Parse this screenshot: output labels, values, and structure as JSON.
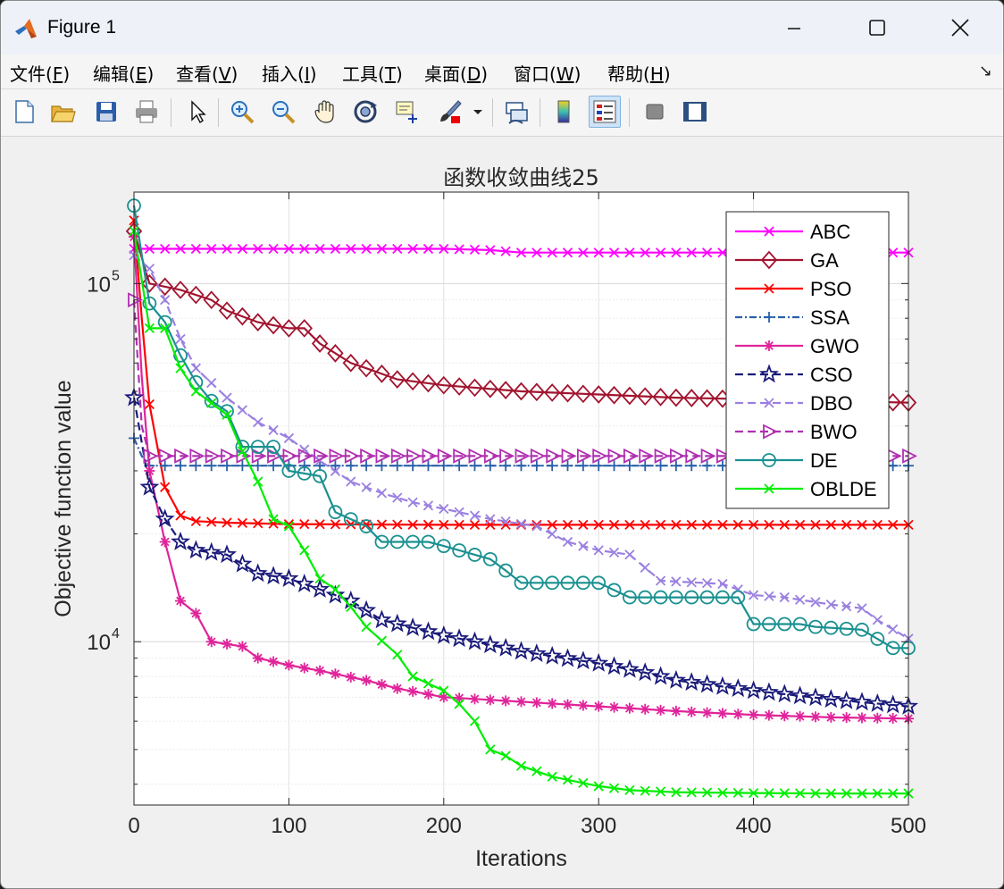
{
  "window": {
    "title": "Figure 1"
  },
  "menu": {
    "items": [
      {
        "label": "文件(",
        "key": "F",
        "end": ")"
      },
      {
        "label": "编辑(",
        "key": "E",
        "end": ")"
      },
      {
        "label": "查看(",
        "key": "V",
        "end": ")"
      },
      {
        "label": "插入(",
        "key": "I",
        "end": ")"
      },
      {
        "label": "工具(",
        "key": "T",
        "end": ")"
      },
      {
        "label": "桌面(",
        "key": "D",
        "end": ")"
      },
      {
        "label": "窗口(",
        "key": "W",
        "end": ")"
      },
      {
        "label": "帮助(",
        "key": "H",
        "end": ")"
      }
    ]
  },
  "toolbar": {
    "icons": [
      "new-figure-icon",
      "open-file-icon",
      "save-icon",
      "print-icon",
      "pointer-icon",
      "zoom-in-icon",
      "zoom-out-icon",
      "pan-hand-icon",
      "rotate-3d-icon",
      "data-cursor-icon",
      "brush-icon",
      "brush-dropdown-icon",
      "link-plot-icon",
      "colorbar-icon",
      "legend-icon",
      "hide-plot-tools-icon",
      "show-plot-tools-icon"
    ]
  },
  "chart_data": {
    "type": "line",
    "title": "函数收敛曲线25",
    "xlabel": "Iterations",
    "ylabel": "Objective function value",
    "xlim": [
      0,
      500
    ],
    "ylim": [
      3500,
      180000
    ],
    "yscale": "log",
    "xticks": [
      "0",
      "100",
      "200",
      "300",
      "400",
      "500"
    ],
    "yticks": [
      {
        "base": "10",
        "exp": "4",
        "value": 10000
      },
      {
        "base": "10",
        "exp": "5",
        "value": 100000
      }
    ],
    "grid": true,
    "legend_position": "top-right",
    "series": [
      {
        "name": "ABC",
        "color": "#ff00ff",
        "dash": "",
        "marker": "x",
        "points": [
          [
            0,
            125000
          ],
          [
            10,
            125000
          ],
          [
            50,
            125000
          ],
          [
            100,
            125000
          ],
          [
            200,
            125000
          ],
          [
            230,
            124000
          ],
          [
            250,
            122000
          ],
          [
            300,
            122000
          ],
          [
            400,
            122000
          ],
          [
            500,
            122000
          ]
        ]
      },
      {
        "name": "GA",
        "color": "#a2142f",
        "dash": "",
        "marker": "diamond",
        "points": [
          [
            0,
            140000
          ],
          [
            10,
            100000
          ],
          [
            30,
            96000
          ],
          [
            50,
            90000
          ],
          [
            60,
            84000
          ],
          [
            80,
            78000
          ],
          [
            100,
            75000
          ],
          [
            110,
            75000
          ],
          [
            120,
            68000
          ],
          [
            140,
            60000
          ],
          [
            150,
            58000
          ],
          [
            170,
            54000
          ],
          [
            200,
            52000
          ],
          [
            250,
            50000
          ],
          [
            300,
            49000
          ],
          [
            350,
            48000
          ],
          [
            400,
            47500
          ],
          [
            450,
            47000
          ],
          [
            500,
            46500
          ]
        ]
      },
      {
        "name": "PSO",
        "color": "#ff0000",
        "dash": "",
        "marker": "x",
        "points": [
          [
            0,
            150000
          ],
          [
            5,
            80000
          ],
          [
            10,
            46000
          ],
          [
            20,
            27000
          ],
          [
            30,
            22500
          ],
          [
            40,
            21700
          ],
          [
            60,
            21500
          ],
          [
            100,
            21300
          ],
          [
            200,
            21200
          ],
          [
            300,
            21200
          ],
          [
            500,
            21200
          ]
        ]
      },
      {
        "name": "SSA",
        "color": "#2a60a8",
        "dash": "8,3,2,3",
        "marker": "plus",
        "points": [
          [
            0,
            37000
          ],
          [
            5,
            33000
          ],
          [
            10,
            31000
          ],
          [
            50,
            31000
          ],
          [
            100,
            31000
          ],
          [
            200,
            31000
          ],
          [
            300,
            31000
          ],
          [
            400,
            31000
          ],
          [
            500,
            31000
          ]
        ]
      },
      {
        "name": "GWO",
        "color": "#e0249a",
        "dash": "",
        "marker": "asterisk",
        "points": [
          [
            0,
            135000
          ],
          [
            5,
            55000
          ],
          [
            10,
            30000
          ],
          [
            20,
            19000
          ],
          [
            30,
            13000
          ],
          [
            40,
            12000
          ],
          [
            50,
            10000
          ],
          [
            70,
            9700
          ],
          [
            80,
            9000
          ],
          [
            100,
            8600
          ],
          [
            120,
            8300
          ],
          [
            150,
            7800
          ],
          [
            170,
            7400
          ],
          [
            200,
            7000
          ],
          [
            250,
            6800
          ],
          [
            300,
            6600
          ],
          [
            350,
            6400
          ],
          [
            400,
            6250
          ],
          [
            450,
            6150
          ],
          [
            500,
            6100
          ]
        ]
      },
      {
        "name": "CSO",
        "color": "#1a1a7a",
        "dash": "9,5",
        "marker": "star",
        "points": [
          [
            0,
            48000
          ],
          [
            5,
            36000
          ],
          [
            10,
            27000
          ],
          [
            20,
            22000
          ],
          [
            30,
            19000
          ],
          [
            40,
            18000
          ],
          [
            60,
            17500
          ],
          [
            80,
            15500
          ],
          [
            100,
            15000
          ],
          [
            120,
            14000
          ],
          [
            140,
            13000
          ],
          [
            160,
            11500
          ],
          [
            200,
            10400
          ],
          [
            220,
            10000
          ],
          [
            250,
            9400
          ],
          [
            300,
            8700
          ],
          [
            330,
            8200
          ],
          [
            350,
            7800
          ],
          [
            400,
            7300
          ],
          [
            450,
            6900
          ],
          [
            500,
            6600
          ]
        ]
      },
      {
        "name": "DBO",
        "color": "#9a80e0",
        "dash": "9,5",
        "marker": "x",
        "points": [
          [
            0,
            120000
          ],
          [
            10,
            110000
          ],
          [
            20,
            90000
          ],
          [
            30,
            70000
          ],
          [
            40,
            58000
          ],
          [
            60,
            48000
          ],
          [
            80,
            41000
          ],
          [
            100,
            37000
          ],
          [
            120,
            32000
          ],
          [
            140,
            28000
          ],
          [
            160,
            26000
          ],
          [
            180,
            24500
          ],
          [
            200,
            23500
          ],
          [
            230,
            22000
          ],
          [
            260,
            21000
          ],
          [
            280,
            19000
          ],
          [
            300,
            18000
          ],
          [
            320,
            17500
          ],
          [
            340,
            14800
          ],
          [
            380,
            14500
          ],
          [
            400,
            13500
          ],
          [
            420,
            13300
          ],
          [
            450,
            12700
          ],
          [
            470,
            12400
          ],
          [
            480,
            11500
          ],
          [
            500,
            10200
          ]
        ]
      },
      {
        "name": "BWO",
        "color": "#b030b0",
        "dash": "9,5",
        "marker": "triangle-right",
        "points": [
          [
            0,
            90000
          ],
          [
            5,
            40000
          ],
          [
            10,
            33000
          ],
          [
            20,
            33000
          ],
          [
            50,
            33000
          ],
          [
            100,
            33000
          ],
          [
            200,
            33000
          ],
          [
            300,
            33000
          ],
          [
            400,
            33000
          ],
          [
            500,
            33000
          ]
        ]
      },
      {
        "name": "DE",
        "color": "#1a9090",
        "dash": "",
        "marker": "circle",
        "points": [
          [
            0,
            165000
          ],
          [
            10,
            88000
          ],
          [
            20,
            78000
          ],
          [
            30,
            63000
          ],
          [
            40,
            53000
          ],
          [
            50,
            47000
          ],
          [
            60,
            44000
          ],
          [
            70,
            35000
          ],
          [
            90,
            35000
          ],
          [
            100,
            30000
          ],
          [
            120,
            29000
          ],
          [
            130,
            23000
          ],
          [
            150,
            21000
          ],
          [
            160,
            19000
          ],
          [
            190,
            19000
          ],
          [
            200,
            18500
          ],
          [
            230,
            17000
          ],
          [
            240,
            15800
          ],
          [
            250,
            14600
          ],
          [
            300,
            14600
          ],
          [
            320,
            13300
          ],
          [
            390,
            13300
          ],
          [
            400,
            11200
          ],
          [
            430,
            11200
          ],
          [
            440,
            11000
          ],
          [
            470,
            10800
          ],
          [
            490,
            9600
          ],
          [
            500,
            9600
          ]
        ]
      },
      {
        "name": "OBLDE",
        "color": "#00ee00",
        "dash": "",
        "marker": "x",
        "points": [
          [
            0,
            140000
          ],
          [
            10,
            75000
          ],
          [
            20,
            75000
          ],
          [
            30,
            58000
          ],
          [
            40,
            50000
          ],
          [
            60,
            43000
          ],
          [
            70,
            34000
          ],
          [
            80,
            28000
          ],
          [
            90,
            22000
          ],
          [
            100,
            21000
          ],
          [
            110,
            18000
          ],
          [
            120,
            15000
          ],
          [
            130,
            14000
          ],
          [
            140,
            12500
          ],
          [
            150,
            11000
          ],
          [
            170,
            9200
          ],
          [
            180,
            8000
          ],
          [
            200,
            7300
          ],
          [
            210,
            6700
          ],
          [
            220,
            6000
          ],
          [
            230,
            5000
          ],
          [
            240,
            4800
          ],
          [
            250,
            4500
          ],
          [
            270,
            4200
          ],
          [
            300,
            3950
          ],
          [
            320,
            3850
          ],
          [
            350,
            3800
          ],
          [
            400,
            3780
          ],
          [
            450,
            3770
          ],
          [
            500,
            3770
          ]
        ]
      }
    ]
  }
}
